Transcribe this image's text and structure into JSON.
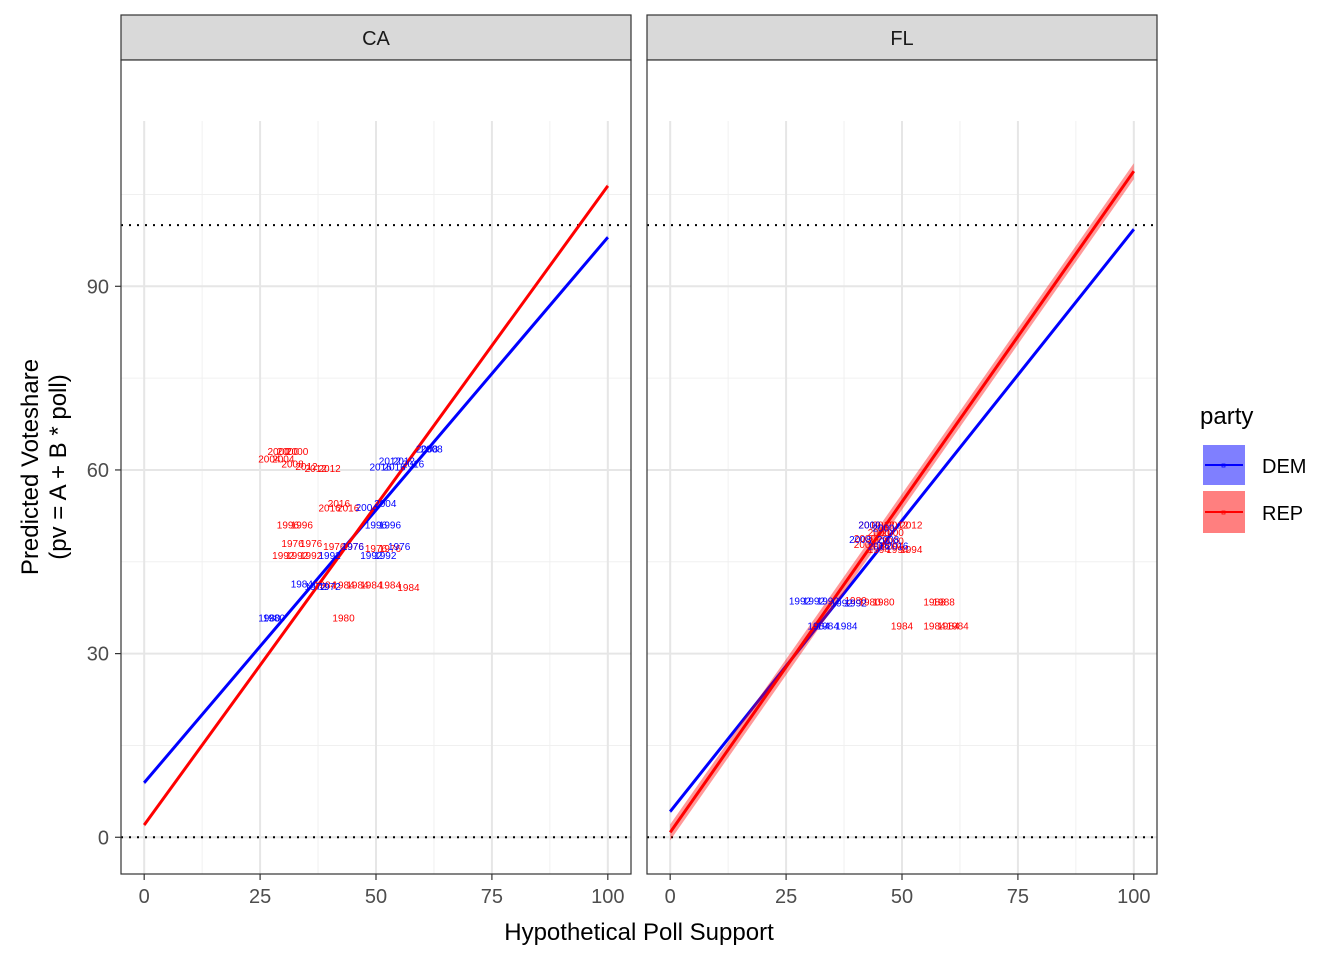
{
  "chart_data": {
    "type": "line",
    "facets": [
      "CA",
      "FL"
    ],
    "xlabel": "Hypothetical Poll Support",
    "ylabel_line1": "Predicted Voteshare",
    "ylabel_line2": "(pv = A + B * poll)",
    "xlim": [
      -5,
      105
    ],
    "ylim": [
      -6,
      117
    ],
    "x_ticks": [
      0,
      25,
      50,
      75,
      100
    ],
    "y_ticks": [
      0,
      30,
      60,
      90
    ],
    "reference_lines_y": [
      0,
      100
    ],
    "grid": true,
    "legend": {
      "title": "party",
      "position": "right",
      "entries": [
        {
          "name": "DEM",
          "color": "#0000ff"
        },
        {
          "name": "REP",
          "color": "#ff0000"
        }
      ]
    },
    "colors": {
      "DEM": "#0000ff",
      "REP": "#ff0000"
    },
    "panels": [
      {
        "facet": "CA",
        "fits": [
          {
            "party": "DEM",
            "intercept": 8.9,
            "end_value": 98.0,
            "se": 0.3
          },
          {
            "party": "REP",
            "intercept": 2.0,
            "end_value": 106.4,
            "se": 0.3
          }
        ],
        "points": [
          {
            "party": "REP",
            "x": 29,
            "y": 63,
            "label": "2000"
          },
          {
            "party": "REP",
            "x": 31,
            "y": 63,
            "label": "2000"
          },
          {
            "party": "REP",
            "x": 33,
            "y": 63,
            "label": "2000"
          },
          {
            "party": "REP",
            "x": 27,
            "y": 61.8,
            "label": "2004"
          },
          {
            "party": "REP",
            "x": 30,
            "y": 61.8,
            "label": "2004"
          },
          {
            "party": "REP",
            "x": 32,
            "y": 61,
            "label": "2008"
          },
          {
            "party": "REP",
            "x": 35,
            "y": 60.6,
            "label": "2012"
          },
          {
            "party": "REP",
            "x": 37,
            "y": 60.2,
            "label": "2012"
          },
          {
            "party": "REP",
            "x": 40,
            "y": 60.2,
            "label": "2012"
          },
          {
            "party": "REP",
            "x": 42,
            "y": 54.5,
            "label": "2016"
          },
          {
            "party": "REP",
            "x": 40,
            "y": 53.8,
            "label": "2016"
          },
          {
            "party": "REP",
            "x": 44,
            "y": 53.8,
            "label": "2016"
          },
          {
            "party": "REP",
            "x": 31,
            "y": 51,
            "label": "1996"
          },
          {
            "party": "REP",
            "x": 34,
            "y": 51,
            "label": "1996"
          },
          {
            "party": "REP",
            "x": 32,
            "y": 48,
            "label": "1976"
          },
          {
            "party": "REP",
            "x": 36,
            "y": 48,
            "label": "1976"
          },
          {
            "party": "REP",
            "x": 41,
            "y": 47.5,
            "label": "1976"
          },
          {
            "party": "REP",
            "x": 45,
            "y": 47.5,
            "label": "1976"
          },
          {
            "party": "REP",
            "x": 50,
            "y": 47.2,
            "label": "1976"
          },
          {
            "party": "REP",
            "x": 53,
            "y": 47.2,
            "label": "1976"
          },
          {
            "party": "REP",
            "x": 30,
            "y": 46,
            "label": "1992"
          },
          {
            "party": "REP",
            "x": 33,
            "y": 46,
            "label": "1992"
          },
          {
            "party": "REP",
            "x": 36,
            "y": 46,
            "label": "1992"
          },
          {
            "party": "REP",
            "x": 39,
            "y": 41.2,
            "label": "1984"
          },
          {
            "party": "REP",
            "x": 43,
            "y": 41.2,
            "label": "1984"
          },
          {
            "party": "REP",
            "x": 46,
            "y": 41.2,
            "label": "1984"
          },
          {
            "party": "REP",
            "x": 49,
            "y": 41.2,
            "label": "1984"
          },
          {
            "party": "REP",
            "x": 53,
            "y": 41.2,
            "label": "1984"
          },
          {
            "party": "REP",
            "x": 57,
            "y": 40.8,
            "label": "1984"
          },
          {
            "party": "REP",
            "x": 43,
            "y": 35.8,
            "label": "1980"
          },
          {
            "party": "DEM",
            "x": 61,
            "y": 63.4,
            "label": "2008"
          },
          {
            "party": "DEM",
            "x": 62,
            "y": 63.4,
            "label": "2008"
          },
          {
            "party": "DEM",
            "x": 53,
            "y": 61.5,
            "label": "2012"
          },
          {
            "party": "DEM",
            "x": 56,
            "y": 61.5,
            "label": "2012"
          },
          {
            "party": "DEM",
            "x": 51,
            "y": 60.5,
            "label": "2016"
          },
          {
            "party": "DEM",
            "x": 54,
            "y": 60.5,
            "label": "2016"
          },
          {
            "party": "DEM",
            "x": 58,
            "y": 61,
            "label": "2016"
          },
          {
            "party": "DEM",
            "x": 52,
            "y": 54.5,
            "label": "2004"
          },
          {
            "party": "DEM",
            "x": 48,
            "y": 53.9,
            "label": "2004"
          },
          {
            "party": "DEM",
            "x": 50,
            "y": 51,
            "label": "1996"
          },
          {
            "party": "DEM",
            "x": 53,
            "y": 51,
            "label": "1996"
          },
          {
            "party": "DEM",
            "x": 45,
            "y": 47.5,
            "label": "1976"
          },
          {
            "party": "DEM",
            "x": 55,
            "y": 47.5,
            "label": "1976"
          },
          {
            "party": "DEM",
            "x": 40,
            "y": 46,
            "label": "1992"
          },
          {
            "party": "DEM",
            "x": 49,
            "y": 46,
            "label": "1992"
          },
          {
            "party": "DEM",
            "x": 52,
            "y": 46,
            "label": "1992"
          },
          {
            "party": "DEM",
            "x": 34,
            "y": 41.4,
            "label": "1984"
          },
          {
            "party": "DEM",
            "x": 37,
            "y": 41,
            "label": "1972"
          },
          {
            "party": "DEM",
            "x": 40,
            "y": 41,
            "label": "1972"
          },
          {
            "party": "DEM",
            "x": 27,
            "y": 35.8,
            "label": "1980"
          },
          {
            "party": "DEM",
            "x": 28,
            "y": 35.8,
            "label": "1980"
          }
        ]
      },
      {
        "facet": "FL",
        "fits": [
          {
            "party": "DEM",
            "intercept": 4.2,
            "end_value": 99.3,
            "se": 0.3
          },
          {
            "party": "REP",
            "intercept": 0.8,
            "end_value": 108.8,
            "se": 1.3
          }
        ],
        "points": [
          {
            "party": "REP",
            "x": 43,
            "y": 51,
            "label": "2012"
          },
          {
            "party": "REP",
            "x": 46,
            "y": 51,
            "label": "2012"
          },
          {
            "party": "REP",
            "x": 49,
            "y": 51,
            "label": "2012"
          },
          {
            "party": "REP",
            "x": 52,
            "y": 51,
            "label": "2012"
          },
          {
            "party": "REP",
            "x": 45,
            "y": 49.8,
            "label": "2000"
          },
          {
            "party": "REP",
            "x": 48,
            "y": 49.8,
            "label": "2000"
          },
          {
            "party": "REP",
            "x": 42,
            "y": 48.8,
            "label": "2000"
          },
          {
            "party": "REP",
            "x": 45,
            "y": 48.4,
            "label": "2000"
          },
          {
            "party": "REP",
            "x": 48,
            "y": 48.4,
            "label": "2000"
          },
          {
            "party": "REP",
            "x": 42,
            "y": 47.8,
            "label": "2004"
          },
          {
            "party": "REP",
            "x": 45,
            "y": 47.6,
            "label": "2004"
          },
          {
            "party": "REP",
            "x": 48,
            "y": 47.6,
            "label": "2004"
          },
          {
            "party": "REP",
            "x": 45,
            "y": 47,
            "label": "1994"
          },
          {
            "party": "REP",
            "x": 49,
            "y": 47,
            "label": "1994"
          },
          {
            "party": "REP",
            "x": 52,
            "y": 47,
            "label": "1994"
          },
          {
            "party": "REP",
            "x": 40,
            "y": 38.7,
            "label": "1980"
          },
          {
            "party": "REP",
            "x": 43,
            "y": 38.4,
            "label": "1980"
          },
          {
            "party": "REP",
            "x": 46,
            "y": 38.4,
            "label": "1980"
          },
          {
            "party": "REP",
            "x": 57,
            "y": 38.4,
            "label": "1988"
          },
          {
            "party": "REP",
            "x": 59,
            "y": 38.4,
            "label": "1988"
          },
          {
            "party": "REP",
            "x": 50,
            "y": 34.5,
            "label": "1984"
          },
          {
            "party": "REP",
            "x": 57,
            "y": 34.5,
            "label": "1984"
          },
          {
            "party": "REP",
            "x": 60,
            "y": 34.5,
            "label": "1984"
          },
          {
            "party": "REP",
            "x": 62,
            "y": 34.5,
            "label": "1984"
          },
          {
            "party": "DEM",
            "x": 43,
            "y": 51,
            "label": "2000"
          },
          {
            "party": "DEM",
            "x": 46,
            "y": 50.5,
            "label": "2000"
          },
          {
            "party": "DEM",
            "x": 41,
            "y": 48.6,
            "label": "2008"
          },
          {
            "party": "DEM",
            "x": 47,
            "y": 48.6,
            "label": "2008"
          },
          {
            "party": "DEM",
            "x": 45,
            "y": 47.6,
            "label": "2016"
          },
          {
            "party": "DEM",
            "x": 49,
            "y": 47.6,
            "label": "2016"
          },
          {
            "party": "DEM",
            "x": 28,
            "y": 38.6,
            "label": "1992"
          },
          {
            "party": "DEM",
            "x": 31,
            "y": 38.6,
            "label": "1992"
          },
          {
            "party": "DEM",
            "x": 34,
            "y": 38.6,
            "label": "1992"
          },
          {
            "party": "DEM",
            "x": 37,
            "y": 38.3,
            "label": "1992"
          },
          {
            "party": "DEM",
            "x": 40,
            "y": 38.3,
            "label": "1992"
          },
          {
            "party": "DEM",
            "x": 32,
            "y": 34.5,
            "label": "1984"
          },
          {
            "party": "DEM",
            "x": 34,
            "y": 34.5,
            "label": "1984"
          },
          {
            "party": "DEM",
            "x": 38,
            "y": 34.5,
            "label": "1984"
          }
        ]
      }
    ]
  }
}
